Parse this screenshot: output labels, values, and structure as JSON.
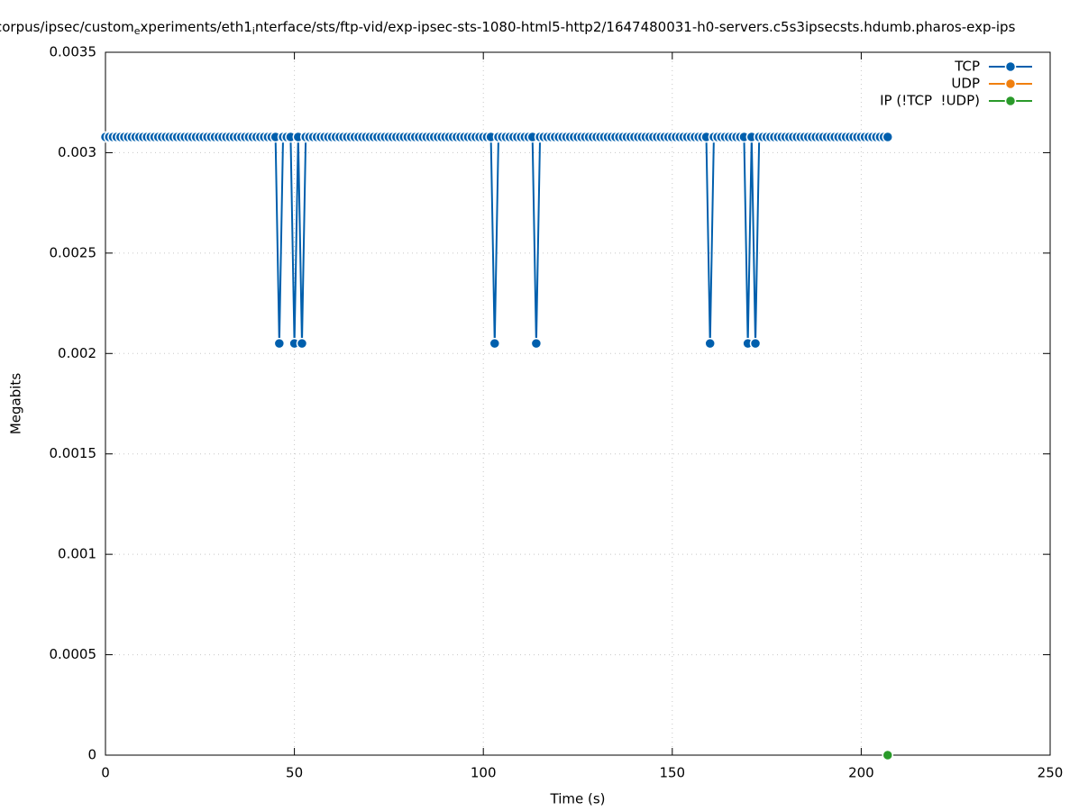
{
  "chart_data": {
    "type": "line",
    "title_parts": [
      "corpus/ipsec/custom",
      "e",
      "xperiments/eth1",
      "i",
      "nterface/sts/ftp-vid/exp-ipsec-sts-1080-html5-http2/1647480031-h0-servers.c5s3ipsecsts.hdumb.pharos-exp-ips"
    ],
    "xlabel": "Time (s)",
    "ylabel": "Megabits",
    "xlim": [
      0,
      250
    ],
    "xticks": [
      0,
      50,
      100,
      150,
      200,
      250
    ],
    "ylim": [
      0,
      0.0035
    ],
    "yticks": [
      0,
      0.0005,
      0.001,
      0.0015,
      0.002,
      0.0025,
      0.003,
      0.0035
    ],
    "grid": true,
    "legend": "top-right",
    "series": [
      {
        "name": "TCP",
        "color": "#005fad",
        "x": [
          0,
          1,
          2,
          3,
          4,
          5,
          6,
          7,
          8,
          9,
          10,
          11,
          12,
          13,
          14,
          15,
          16,
          17,
          18,
          19,
          20,
          21,
          22,
          23,
          24,
          25,
          26,
          27,
          28,
          29,
          30,
          31,
          32,
          33,
          34,
          35,
          36,
          37,
          38,
          39,
          40,
          41,
          42,
          43,
          44,
          45,
          46,
          47,
          48,
          49,
          50,
          51,
          52,
          53,
          54,
          55,
          56,
          57,
          58,
          59,
          60,
          61,
          62,
          63,
          64,
          65,
          66,
          67,
          68,
          69,
          70,
          71,
          72,
          73,
          74,
          75,
          76,
          77,
          78,
          79,
          80,
          81,
          82,
          83,
          84,
          85,
          86,
          87,
          88,
          89,
          90,
          91,
          92,
          93,
          94,
          95,
          96,
          97,
          98,
          99,
          100,
          101,
          102,
          103,
          104,
          105,
          106,
          107,
          108,
          109,
          110,
          111,
          112,
          113,
          114,
          115,
          116,
          117,
          118,
          119,
          120,
          121,
          122,
          123,
          124,
          125,
          126,
          127,
          128,
          129,
          130,
          131,
          132,
          133,
          134,
          135,
          136,
          137,
          138,
          139,
          140,
          141,
          142,
          143,
          144,
          145,
          146,
          147,
          148,
          149,
          150,
          151,
          152,
          153,
          154,
          155,
          156,
          157,
          158,
          159,
          160,
          161,
          162,
          163,
          164,
          165,
          166,
          167,
          168,
          169,
          170,
          171,
          172,
          173,
          174,
          175,
          176,
          177,
          178,
          179,
          180,
          181,
          182,
          183,
          184,
          185,
          186,
          187,
          188,
          189,
          190,
          191,
          192,
          193,
          194,
          195,
          196,
          197,
          198,
          199,
          200,
          201,
          202,
          203,
          204,
          205,
          206,
          207
        ],
        "values": [
          0.003078,
          0.003078,
          0.003078,
          0.003078,
          0.003078,
          0.003078,
          0.003078,
          0.003078,
          0.003078,
          0.003078,
          0.003078,
          0.003078,
          0.003078,
          0.003078,
          0.003078,
          0.003078,
          0.003078,
          0.003078,
          0.003078,
          0.003078,
          0.003078,
          0.003078,
          0.003078,
          0.003078,
          0.003078,
          0.003078,
          0.003078,
          0.003078,
          0.003078,
          0.003078,
          0.003078,
          0.003078,
          0.003078,
          0.003078,
          0.003078,
          0.003078,
          0.003078,
          0.003078,
          0.003078,
          0.003078,
          0.003078,
          0.003078,
          0.003078,
          0.003078,
          0.003078,
          0.003078,
          0.00205,
          0.003078,
          0.003078,
          0.003078,
          0.00205,
          0.003078,
          0.00205,
          0.003078,
          0.003078,
          0.003078,
          0.003078,
          0.003078,
          0.003078,
          0.003078,
          0.003078,
          0.003078,
          0.003078,
          0.003078,
          0.003078,
          0.003078,
          0.003078,
          0.003078,
          0.003078,
          0.003078,
          0.003078,
          0.003078,
          0.003078,
          0.003078,
          0.003078,
          0.003078,
          0.003078,
          0.003078,
          0.003078,
          0.003078,
          0.003078,
          0.003078,
          0.003078,
          0.003078,
          0.003078,
          0.003078,
          0.003078,
          0.003078,
          0.003078,
          0.003078,
          0.003078,
          0.003078,
          0.003078,
          0.003078,
          0.003078,
          0.003078,
          0.003078,
          0.003078,
          0.003078,
          0.003078,
          0.003078,
          0.003078,
          0.003078,
          0.00205,
          0.003078,
          0.003078,
          0.003078,
          0.003078,
          0.003078,
          0.003078,
          0.003078,
          0.003078,
          0.003078,
          0.003078,
          0.00205,
          0.003078,
          0.003078,
          0.003078,
          0.003078,
          0.003078,
          0.003078,
          0.003078,
          0.003078,
          0.003078,
          0.003078,
          0.003078,
          0.003078,
          0.003078,
          0.003078,
          0.003078,
          0.003078,
          0.003078,
          0.003078,
          0.003078,
          0.003078,
          0.003078,
          0.003078,
          0.003078,
          0.003078,
          0.003078,
          0.003078,
          0.003078,
          0.003078,
          0.003078,
          0.003078,
          0.003078,
          0.003078,
          0.003078,
          0.003078,
          0.003078,
          0.003078,
          0.003078,
          0.003078,
          0.003078,
          0.003078,
          0.003078,
          0.003078,
          0.003078,
          0.003078,
          0.003078,
          0.00205,
          0.003078,
          0.003078,
          0.003078,
          0.003078,
          0.003078,
          0.003078,
          0.003078,
          0.003078,
          0.003078,
          0.00205,
          0.003078,
          0.00205,
          0.003078,
          0.003078,
          0.003078,
          0.003078,
          0.003078,
          0.003078,
          0.003078,
          0.003078,
          0.003078,
          0.003078,
          0.003078,
          0.003078,
          0.003078,
          0.003078,
          0.003078,
          0.003078,
          0.003078,
          0.003078,
          0.003078,
          0.003078,
          0.003078,
          0.003078,
          0.003078,
          0.003078,
          0.003078,
          0.003078,
          0.003078,
          0.003078,
          0.003078,
          0.003078,
          0.003078,
          0.003078,
          0.003078,
          0.003078,
          0.003078
        ]
      },
      {
        "name": "UDP",
        "color": "#f07f0e",
        "x": [],
        "values": []
      },
      {
        "name": "IP (!TCP  !UDP)",
        "color": "#2a9a2a",
        "x": [
          207
        ],
        "values": [
          0
        ]
      }
    ]
  }
}
